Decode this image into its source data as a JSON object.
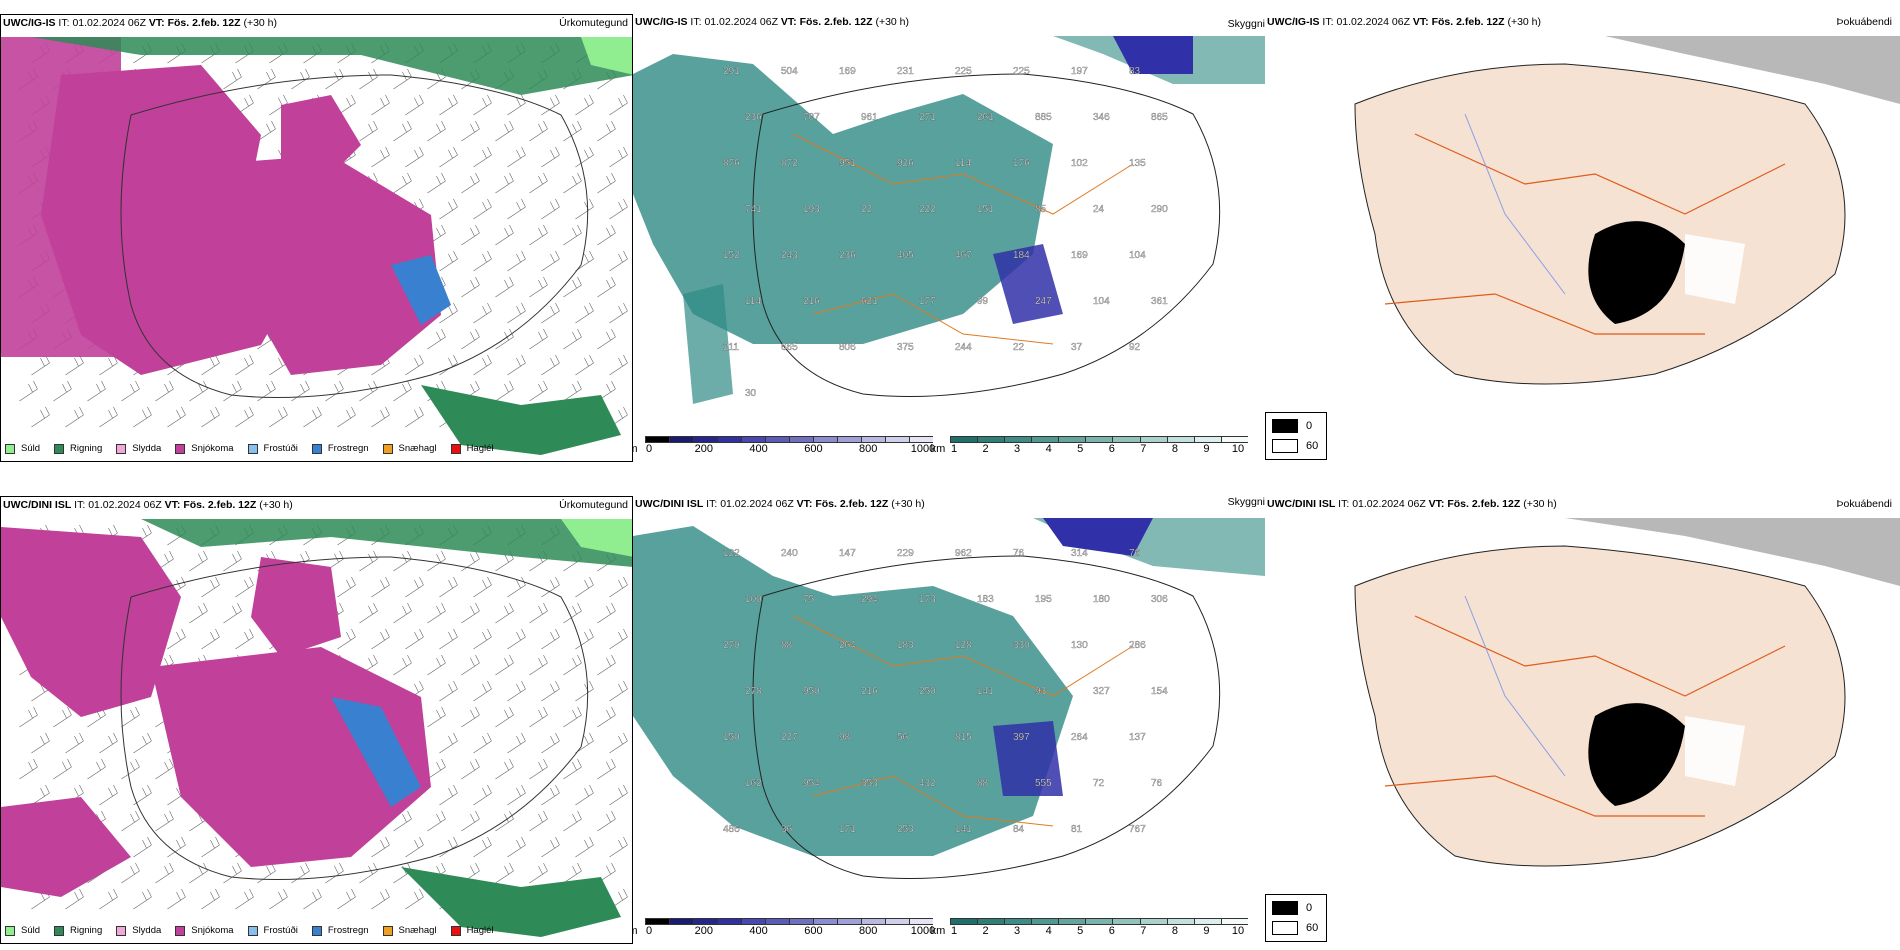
{
  "rows": [
    {
      "model": "UWC/IG-IS",
      "it_label": "IT:",
      "it_value": "01.02.2024 06Z",
      "vt_label": "VT:",
      "vt_value": "Fös. 2.feb. 12Z",
      "lead": "(+30 h)",
      "panel_names": [
        "Úrkomutegund",
        "Skyggni",
        "Þokuábendi"
      ],
      "visibility_labels": [
        {
          "t": "291"
        },
        {
          "t": "504"
        },
        {
          "t": "169"
        },
        {
          "t": "231"
        },
        {
          "t": "225"
        },
        {
          "t": "225"
        },
        {
          "t": "197"
        },
        {
          "t": "83"
        },
        {
          "t": "236"
        },
        {
          "t": "707"
        },
        {
          "t": "961"
        },
        {
          "t": "271"
        },
        {
          "t": "261"
        },
        {
          "t": "885"
        },
        {
          "t": "346"
        },
        {
          "t": "865"
        },
        {
          "t": "876"
        },
        {
          "t": "872"
        },
        {
          "t": "951"
        },
        {
          "t": "926"
        },
        {
          "t": "114"
        },
        {
          "t": "176"
        },
        {
          "t": "102"
        },
        {
          "t": "135"
        },
        {
          "t": "741"
        },
        {
          "t": "193"
        },
        {
          "t": "22"
        },
        {
          "t": "222"
        },
        {
          "t": "151"
        },
        {
          "t": "85"
        },
        {
          "t": "24"
        },
        {
          "t": "290"
        },
        {
          "t": "152"
        },
        {
          "t": "243"
        },
        {
          "t": "236"
        },
        {
          "t": "405"
        },
        {
          "t": "467"
        },
        {
          "t": "184"
        },
        {
          "t": "169"
        },
        {
          "t": "104"
        },
        {
          "t": "114"
        },
        {
          "t": "216"
        },
        {
          "t": "621"
        },
        {
          "t": "177"
        },
        {
          "t": "99"
        },
        {
          "t": "247"
        },
        {
          "t": "104"
        },
        {
          "t": "361"
        },
        {
          "t": "211"
        },
        {
          "t": "665"
        },
        {
          "t": "806"
        },
        {
          "t": "375"
        },
        {
          "t": "244"
        },
        {
          "t": "22"
        },
        {
          "t": "37"
        },
        {
          "t": "92"
        },
        {
          "t": "30"
        }
      ]
    },
    {
      "model": "UWC/DINI ISL",
      "it_label": "IT:",
      "it_value": "01.02.2024 06Z",
      "vt_label": "VT:",
      "vt_value": "Fös. 2.feb. 12Z",
      "lead": "(+30 h)",
      "panel_names": [
        "Úrkomutegund",
        "Skyggni",
        "Þokuábendi"
      ],
      "visibility_labels": [
        {
          "t": "122"
        },
        {
          "t": "240"
        },
        {
          "t": "147"
        },
        {
          "t": "229"
        },
        {
          "t": "962"
        },
        {
          "t": "76"
        },
        {
          "t": "314"
        },
        {
          "t": "76"
        },
        {
          "t": "100"
        },
        {
          "t": "75"
        },
        {
          "t": "294"
        },
        {
          "t": "173"
        },
        {
          "t": "183"
        },
        {
          "t": "195"
        },
        {
          "t": "180"
        },
        {
          "t": "306"
        },
        {
          "t": "270"
        },
        {
          "t": "88"
        },
        {
          "t": "264"
        },
        {
          "t": "183"
        },
        {
          "t": "128"
        },
        {
          "t": "330"
        },
        {
          "t": "130"
        },
        {
          "t": "286"
        },
        {
          "t": "278"
        },
        {
          "t": "950"
        },
        {
          "t": "216"
        },
        {
          "t": "250"
        },
        {
          "t": "141"
        },
        {
          "t": "93"
        },
        {
          "t": "327"
        },
        {
          "t": "154"
        },
        {
          "t": "150"
        },
        {
          "t": "227"
        },
        {
          "t": "98"
        },
        {
          "t": "56"
        },
        {
          "t": "815"
        },
        {
          "t": "397"
        },
        {
          "t": "264"
        },
        {
          "t": "137"
        },
        {
          "t": "162"
        },
        {
          "t": "954"
        },
        {
          "t": "353"
        },
        {
          "t": "432"
        },
        {
          "t": "88"
        },
        {
          "t": "555"
        },
        {
          "t": "72"
        },
        {
          "t": "76"
        },
        {
          "t": "486"
        },
        {
          "t": "36"
        },
        {
          "t": "171"
        },
        {
          "t": "253"
        },
        {
          "t": "141"
        },
        {
          "t": "84"
        },
        {
          "t": "81"
        },
        {
          "t": "767"
        }
      ]
    }
  ],
  "precip_legend": [
    {
      "label": "Súld",
      "color": "#90ee90"
    },
    {
      "label": "Rigning",
      "color": "#2e8b57"
    },
    {
      "label": "Slydda",
      "color": "#f0a8d8"
    },
    {
      "label": "Snjókoma",
      "color": "#c0409a"
    },
    {
      "label": "Frostúði",
      "color": "#87bff0"
    },
    {
      "label": "Frostregn",
      "color": "#3a80d0"
    },
    {
      "label": "Snæhagl",
      "color": "#f0a020"
    },
    {
      "label": "Haglél",
      "color": "#e81010"
    }
  ],
  "cloudbase_bar": {
    "unit": "m",
    "ticks": [
      "0",
      "200",
      "400",
      "600",
      "800",
      "1000"
    ],
    "colors": [
      "#000000",
      "#1a1a70",
      "#25258c",
      "#3030a0",
      "#4848b0",
      "#5c5cb8",
      "#7070c0",
      "#8c8cd0",
      "#a0a0d8",
      "#b8b8e0",
      "#d0d0ec",
      "#e4e4f4"
    ]
  },
  "visibility_bar": {
    "unit": "km",
    "ticks": [
      "1",
      "2",
      "3",
      "4",
      "5",
      "6",
      "7",
      "8",
      "9",
      "10"
    ],
    "colors": [
      "#1f6f6a",
      "#2f7f79",
      "#3f8c86",
      "#519891",
      "#65a59e",
      "#7bb3ad",
      "#92c2bc",
      "#aad1cc",
      "#c2e0dc",
      "#dcefec",
      "#f4fbfa"
    ]
  },
  "fog_legend": [
    {
      "label": "0",
      "color": "#000000"
    },
    {
      "label": "60",
      "color": "#ffffff"
    }
  ],
  "colors": {
    "land": "#f5e2d2",
    "road": "#e05a1a",
    "river": "#8a9ee8",
    "teal": "#2f8a84",
    "cloud_blue": "#3030a8",
    "snow": "#c0409a",
    "rain": "#2e8b57"
  }
}
